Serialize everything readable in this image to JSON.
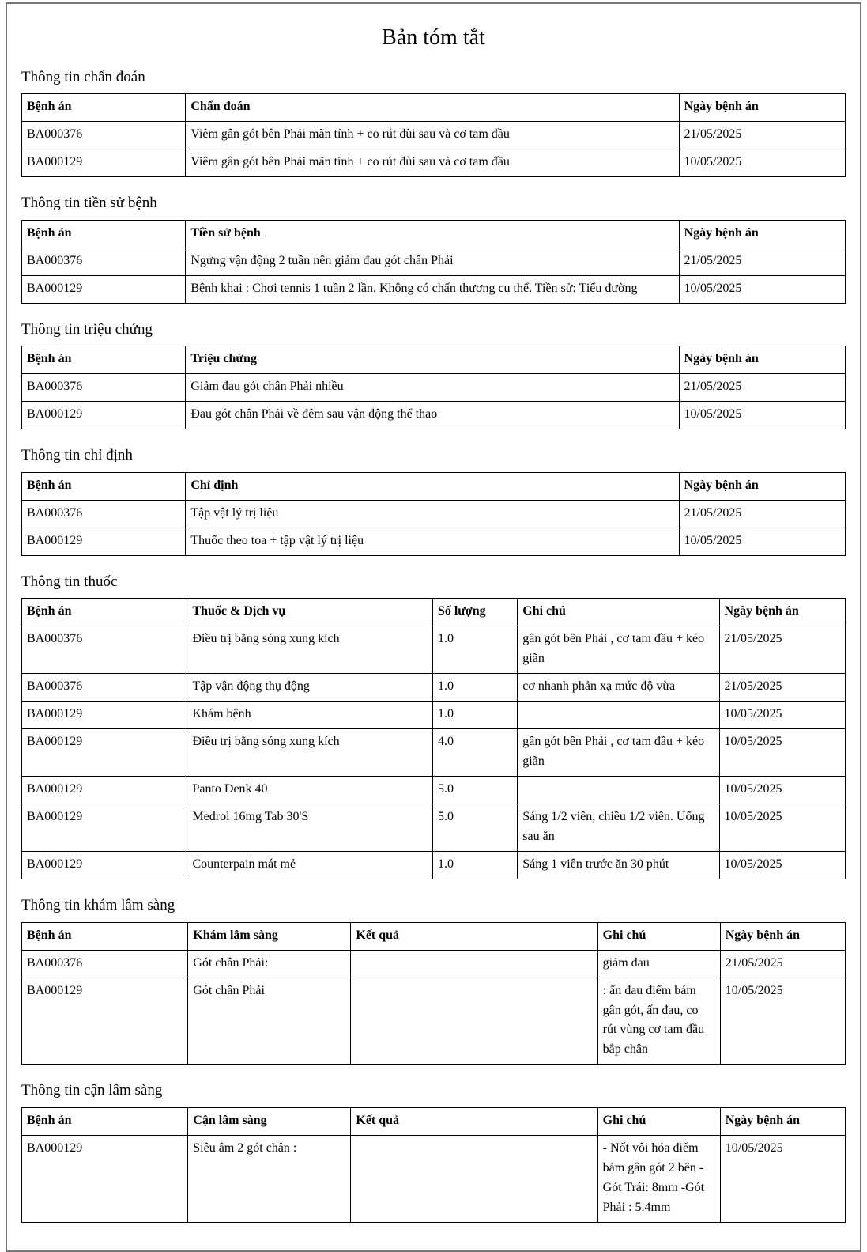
{
  "title": "Bản tóm tắt",
  "sections": [
    {
      "heading": "Thông tin chẩn đoán",
      "columns": [
        "Bệnh án",
        "Chẩn đoán",
        "Ngày bệnh án"
      ],
      "rows": [
        [
          "BA000376",
          "Viêm gân gót bên Phải mãn tính + co rút đùi sau và cơ tam đầu",
          "21/05/2025"
        ],
        [
          "BA000129",
          "Viêm gân gót bên Phải mãn tính + co rút đùi sau và cơ tam đầu",
          "10/05/2025"
        ]
      ]
    },
    {
      "heading": "Thông tin tiền sử bệnh",
      "columns": [
        "Bệnh án",
        "Tiền sử bệnh",
        "Ngày bệnh án"
      ],
      "rows": [
        [
          "BA000376",
          "Ngưng vận động 2 tuần nên giảm đau gót chân Phải",
          "21/05/2025"
        ],
        [
          "BA000129",
          "Bệnh khai : Chơi tennis 1 tuần 2 lần. Không có chấn thương cụ thể. Tiền sử: Tiểu đường",
          "10/05/2025"
        ]
      ]
    },
    {
      "heading": "Thông tin triệu chứng",
      "columns": [
        "Bệnh án",
        "Triệu chứng",
        "Ngày bệnh án"
      ],
      "rows": [
        [
          "BA000376",
          "Giảm đau gót chân Phải nhiều",
          "21/05/2025"
        ],
        [
          "BA000129",
          "Đau gót chân Phải về đêm sau vận động thể thao",
          "10/05/2025"
        ]
      ]
    },
    {
      "heading": "Thông tin chỉ định",
      "columns": [
        "Bệnh án",
        "Chỉ định",
        "Ngày bệnh án"
      ],
      "rows": [
        [
          "BA000376",
          "Tập vật lý trị liệu",
          "21/05/2025"
        ],
        [
          "BA000129",
          "Thuốc theo toa + tập vật lý trị liệu",
          "10/05/2025"
        ]
      ]
    },
    {
      "heading": "Thông tin thuốc",
      "columns": [
        "Bệnh án",
        "Thuốc & Dịch vụ",
        "Số lượng",
        "Ghi chú",
        "Ngày bệnh án"
      ],
      "rows": [
        [
          "BA000376",
          "Điều trị bằng sóng xung kích",
          "1.0",
          "gân gót bên Phải , cơ tam đầu + kéo giãn",
          "21/05/2025"
        ],
        [
          "BA000376",
          "Tập vận động thụ động",
          "1.0",
          "cơ nhanh phản xạ mức độ vừa",
          "21/05/2025"
        ],
        [
          "BA000129",
          "Khám bệnh",
          "1.0",
          "",
          "10/05/2025"
        ],
        [
          "BA000129",
          "Điều trị bằng sóng xung kích",
          "4.0",
          "gân gót bên Phải , cơ tam đầu + kéo giãn",
          "10/05/2025"
        ],
        [
          "BA000129",
          "Panto Denk 40",
          "5.0",
          "",
          "10/05/2025"
        ],
        [
          "BA000129",
          "Medrol 16mg Tab 30'S",
          "5.0",
          "Sáng 1/2 viên, chiều 1/2 viên. Uống sau ăn",
          "10/05/2025"
        ],
        [
          "BA000129",
          "Counterpain mát mẻ",
          "1.0",
          "Sáng 1 viên trước ăn 30 phút",
          "10/05/2025"
        ]
      ]
    },
    {
      "heading": "Thông tin khám lâm sàng",
      "columns": [
        "Bệnh án",
        "Khám lâm sàng",
        "Kết quả",
        "Ghi chú",
        "Ngày bệnh án"
      ],
      "rows": [
        [
          "BA000376",
          "Gót chân Phải:",
          "",
          "giảm đau",
          "21/05/2025"
        ],
        [
          "BA000129",
          "Gót chân Phải",
          "",
          ": ấn đau điểm bám gân gót, ấn đau, co rút vùng cơ tam đầu bắp chân",
          "10/05/2025"
        ]
      ]
    },
    {
      "heading": "Thông tin cận lâm sàng",
      "columns": [
        "Bệnh án",
        "Cận lâm sàng",
        "Kết quả",
        "Ghi chú",
        "Ngày bệnh án"
      ],
      "rows": [
        [
          "BA000129",
          "Siêu âm 2 gót chân :",
          "",
          "- Nốt vôi hóa điểm bám gân gót 2 bên - Gót Trái: 8mm -Gót Phải : 5.4mm",
          "10/05/2025"
        ]
      ]
    }
  ]
}
